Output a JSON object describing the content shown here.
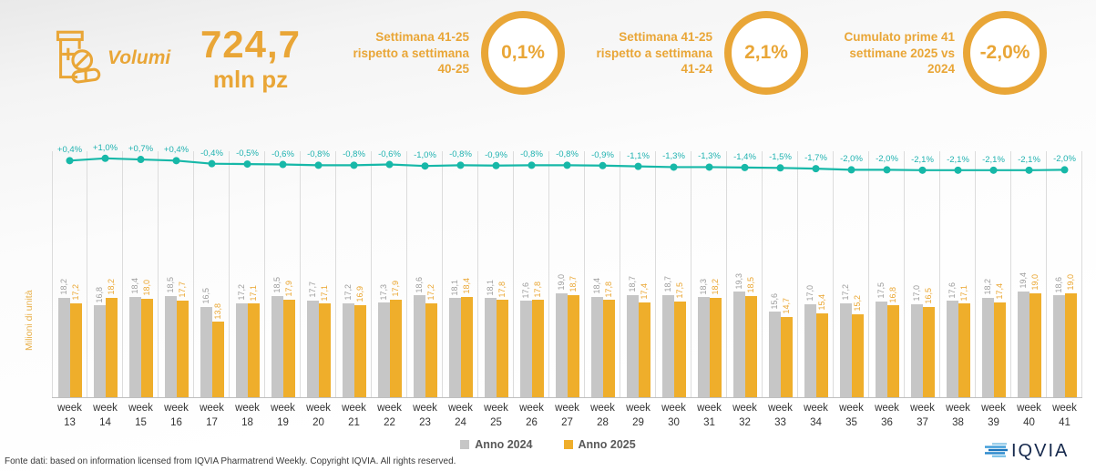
{
  "header": {
    "icon": "pharmacy-icon",
    "category_label": "Volumi",
    "total_value": "724,7",
    "total_unit": "mln pz",
    "accent_color": "#E9A637",
    "kpis": [
      {
        "label": "Settimana 41-25 rispetto a settimana 40-25",
        "value": "0,1%"
      },
      {
        "label": "Settimana 41-25 rispetto a settimana 41-24",
        "value": "2,1%"
      },
      {
        "label": "Cumulato prime 41 settimane 2025 vs 2024",
        "value": "-2,0%"
      }
    ]
  },
  "chart_data": {
    "type": "bar+line",
    "x_prefix": "week",
    "categories": [
      13,
      14,
      15,
      16,
      17,
      18,
      19,
      20,
      21,
      22,
      23,
      24,
      25,
      26,
      27,
      28,
      29,
      30,
      31,
      32,
      33,
      34,
      35,
      36,
      37,
      38,
      39,
      40,
      41
    ],
    "ylabel": "Milioni di unità",
    "ylim": [
      0,
      20
    ],
    "grid": "vertical",
    "legend_position": "bottom",
    "series": [
      {
        "name": "Anno 2024",
        "color": "#C6C6C6",
        "label_color": "#9C9C9C",
        "values": [
          18.2,
          16.8,
          18.4,
          18.5,
          16.5,
          17.2,
          18.5,
          17.7,
          17.2,
          17.3,
          18.6,
          18.1,
          18.1,
          17.6,
          19.0,
          18.4,
          18.7,
          18.7,
          18.3,
          19.3,
          15.6,
          17.0,
          17.2,
          17.5,
          17.0,
          17.6,
          18.2,
          19.4,
          18.6
        ],
        "labels": [
          "18,2",
          "16,8",
          "18,4",
          "18,5",
          "16,5",
          "17,2",
          "18,5",
          "17,7",
          "17,2",
          "17,3",
          "18,6",
          "18,1",
          "18,1",
          "17,6",
          "19,0",
          "18,4",
          "18,7",
          "18,7",
          "18,3",
          "19,3",
          "15,6",
          "17,0",
          "17,2",
          "17,5",
          "17,0",
          "17,6",
          "18,2",
          "19,4",
          "18,6"
        ]
      },
      {
        "name": "Anno 2025",
        "color": "#EFAE2B",
        "label_color": "#EAA52F",
        "values": [
          17.2,
          18.2,
          18.0,
          17.7,
          13.8,
          17.1,
          17.9,
          17.1,
          16.9,
          17.9,
          17.2,
          18.4,
          17.8,
          17.8,
          18.7,
          17.8,
          17.4,
          17.5,
          18.2,
          18.5,
          14.7,
          15.4,
          15.2,
          16.8,
          16.5,
          17.1,
          17.4,
          19.0,
          19.0
        ],
        "labels": [
          "17,2",
          "18,2",
          "18,0",
          "17,7",
          "13,8",
          "17,1",
          "17,9",
          "17,1",
          "16,9",
          "17,9",
          "17,2",
          "18,4",
          "17,8",
          "17,8",
          "18,7",
          "17,8",
          "17,4",
          "17,5",
          "18,2",
          "18,5",
          "14,7",
          "15,4",
          "15,2",
          "16,8",
          "16,5",
          "17,1",
          "17,4",
          "19,0",
          "19,0"
        ]
      }
    ],
    "line_overlay": {
      "color": "#17B8A8",
      "label_color": "#1FB2B0",
      "values": [
        0.4,
        1.0,
        0.7,
        0.4,
        -0.4,
        -0.5,
        -0.6,
        -0.8,
        -0.8,
        -0.6,
        -1.0,
        -0.8,
        -0.9,
        -0.8,
        -0.8,
        -0.9,
        -1.1,
        -1.3,
        -1.3,
        -1.4,
        -1.5,
        -1.7,
        -2.0,
        -2.0,
        -2.1,
        -2.1,
        -2.1,
        -2.1,
        -2.0
      ],
      "labels": [
        "+0,4%",
        "+1,0%",
        "+0,7%",
        "+0,4%",
        "-0,4%",
        "-0,5%",
        "-0,6%",
        "-0,8%",
        "-0,8%",
        "-0,6%",
        "-1,0%",
        "-0,8%",
        "-0,9%",
        "-0,8%",
        "-0,8%",
        "-0,9%",
        "-1,1%",
        "-1,3%",
        "-1,3%",
        "-1,4%",
        "-1,5%",
        "-1,7%",
        "-2,0%",
        "-2,0%",
        "-2,1%",
        "-2,1%",
        "-2,1%",
        "-2,1%",
        "-2,0%"
      ]
    }
  },
  "legend": {
    "items": [
      {
        "label": "Anno 2024",
        "color": "#C6C6C6"
      },
      {
        "label": "Anno 2025",
        "color": "#EFAE2B"
      }
    ]
  },
  "footer": {
    "source": "Fonte dati: based on information licensed from IQVIA Pharmatrend Weekly. Copyright IQVIA. All rights reserved.",
    "logo_text": "IQVIA"
  }
}
